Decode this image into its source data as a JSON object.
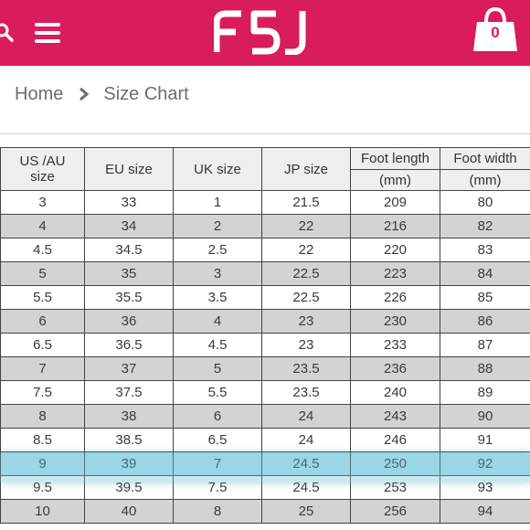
{
  "header": {
    "logo_text": "FSJ",
    "cart_count": "0",
    "colors": {
      "brand": "#d91c5c",
      "icon": "#ffffff"
    },
    "icons": [
      "search-icon",
      "menu-icon",
      "shopping-bag-icon"
    ]
  },
  "breadcrumb": {
    "home": "Home",
    "current": "Size Chart"
  },
  "table": {
    "headers": {
      "us_au": [
        "US /AU",
        "size"
      ],
      "eu": "EU size",
      "uk": "UK size",
      "jp": "JP size",
      "foot_length": [
        "Foot length",
        "(mm)"
      ],
      "foot_width": [
        "Foot width",
        "(mm)"
      ]
    },
    "rows": [
      [
        "3",
        "33",
        "1",
        "21.5",
        "209",
        "80"
      ],
      [
        "4",
        "34",
        "2",
        "22",
        "216",
        "82"
      ],
      [
        "4.5",
        "34.5",
        "2.5",
        "22",
        "220",
        "83"
      ],
      [
        "5",
        "35",
        "3",
        "22.5",
        "223",
        "84"
      ],
      [
        "5.5",
        "35.5",
        "3.5",
        "22.5",
        "226",
        "85"
      ],
      [
        "6",
        "36",
        "4",
        "23",
        "230",
        "86"
      ],
      [
        "6.5",
        "36.5",
        "4.5",
        "23",
        "233",
        "87"
      ],
      [
        "7",
        "37",
        "5",
        "23.5",
        "236",
        "88"
      ],
      [
        "7.5",
        "37.5",
        "5.5",
        "23.5",
        "240",
        "89"
      ],
      [
        "8",
        "38",
        "6",
        "24",
        "243",
        "90"
      ],
      [
        "8.5",
        "38.5",
        "6.5",
        "24",
        "246",
        "91"
      ],
      [
        "9",
        "39",
        "7",
        "24.5",
        "250",
        "92"
      ],
      [
        "9.5",
        "39.5",
        "7.5",
        "24.5",
        "253",
        "93"
      ],
      [
        "10",
        "40",
        "8",
        "25",
        "256",
        "94"
      ]
    ],
    "highlighted_row": "9",
    "highlight_color": "#b9e3ef"
  }
}
